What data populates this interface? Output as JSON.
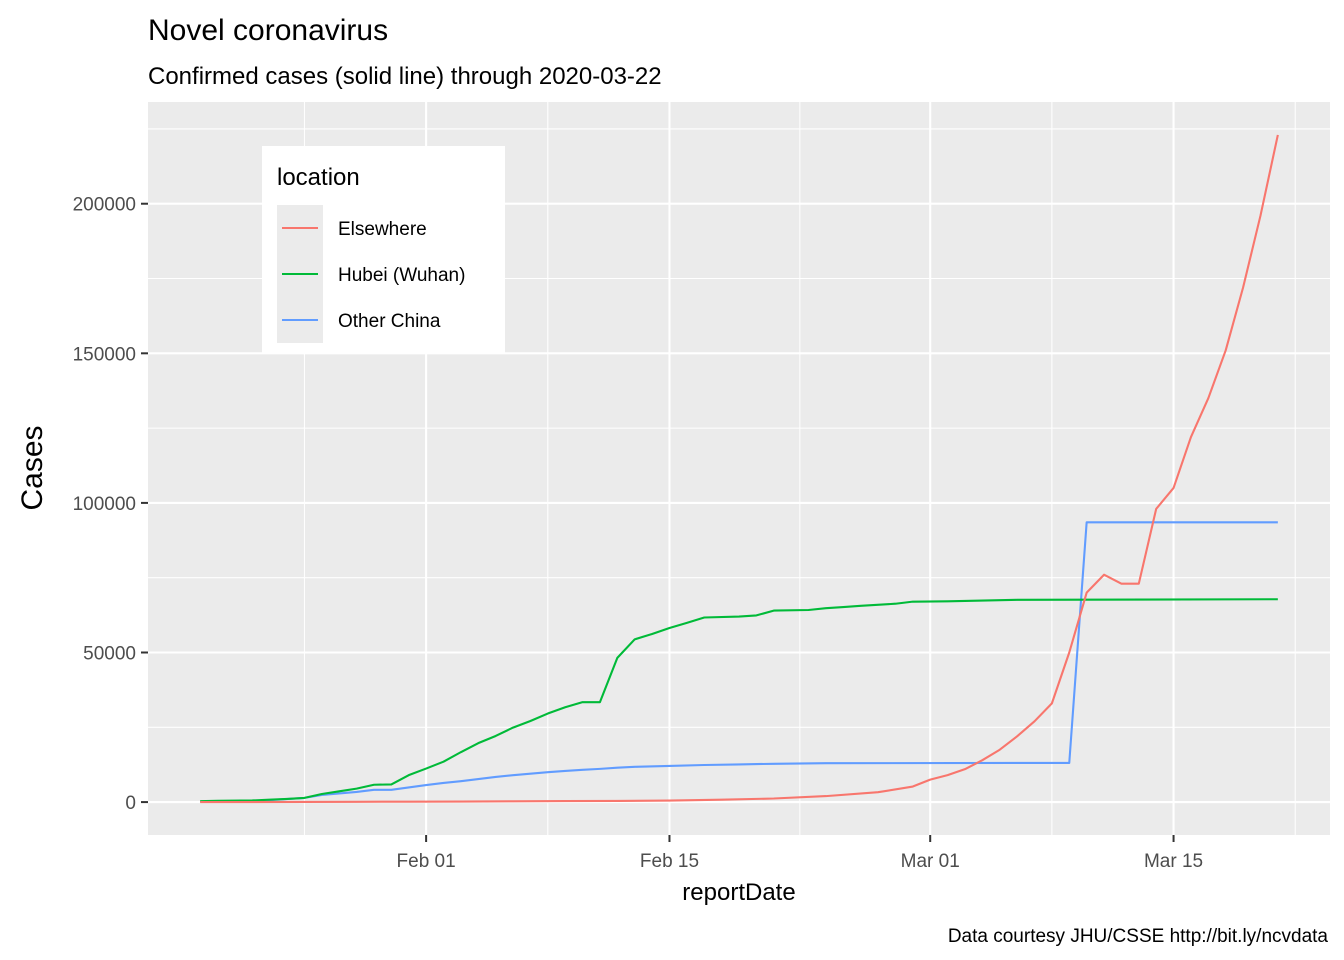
{
  "chart_data": {
    "type": "line",
    "title": "Novel coronavirus",
    "subtitle": "Confirmed cases (solid line)  through 2020-03-22",
    "xlabel": "reportDate",
    "ylabel": "Cases",
    "caption": "Data courtesy JHU/CSSE http://bit.ly/ncvdata",
    "xlim": [
      "2020-01-16",
      "2020-03-24"
    ],
    "ylim": [
      -11000,
      234000
    ],
    "x_ticks": [
      {
        "value": "2020-02-01",
        "label": "Feb 01"
      },
      {
        "value": "2020-02-15",
        "label": "Feb 15"
      },
      {
        "value": "2020-03-01",
        "label": "Mar 01"
      },
      {
        "value": "2020-03-15",
        "label": "Mar 15"
      }
    ],
    "y_ticks": [
      {
        "value": 0,
        "label": "0"
      },
      {
        "value": 50000,
        "label": "50000"
      },
      {
        "value": 100000,
        "label": "100000"
      },
      {
        "value": 150000,
        "label": "150000"
      },
      {
        "value": 200000,
        "label": "200000"
      }
    ],
    "grid": true,
    "legend": {
      "title": "location",
      "position": "top-left"
    },
    "series": [
      {
        "name": "Elsewhere",
        "color": "#F8766D",
        "points": [
          [
            "2020-01-19",
            0
          ],
          [
            "2020-01-22",
            10
          ],
          [
            "2020-01-25",
            40
          ],
          [
            "2020-01-28",
            100
          ],
          [
            "2020-01-31",
            150
          ],
          [
            "2020-02-03",
            180
          ],
          [
            "2020-02-06",
            250
          ],
          [
            "2020-02-09",
            330
          ],
          [
            "2020-02-12",
            400
          ],
          [
            "2020-02-15",
            500
          ],
          [
            "2020-02-18",
            800
          ],
          [
            "2020-02-21",
            1200
          ],
          [
            "2020-02-24",
            2000
          ],
          [
            "2020-02-27",
            3300
          ],
          [
            "2020-02-29",
            5200
          ],
          [
            "2020-03-01",
            7500
          ],
          [
            "2020-03-02",
            9000
          ],
          [
            "2020-03-03",
            11000
          ],
          [
            "2020-03-04",
            14000
          ],
          [
            "2020-03-05",
            17500
          ],
          [
            "2020-03-06",
            22000
          ],
          [
            "2020-03-07",
            27000
          ],
          [
            "2020-03-08",
            33000
          ],
          [
            "2020-03-09",
            50000
          ],
          [
            "2020-03-10",
            70000
          ],
          [
            "2020-03-11",
            76000
          ],
          [
            "2020-03-12",
            73000
          ],
          [
            "2020-03-13",
            73000
          ],
          [
            "2020-03-14",
            98000
          ],
          [
            "2020-03-15",
            105000
          ],
          [
            "2020-03-16",
            122000
          ],
          [
            "2020-03-17",
            135000
          ],
          [
            "2020-03-18",
            151000
          ],
          [
            "2020-03-19",
            172000
          ],
          [
            "2020-03-20",
            196000
          ],
          [
            "2020-03-21",
            223000
          ]
        ]
      },
      {
        "name": "Hubei (Wuhan)",
        "color": "#00BA38",
        "points": [
          [
            "2020-01-19",
            300
          ],
          [
            "2020-01-20",
            450
          ],
          [
            "2020-01-22",
            550
          ],
          [
            "2020-01-23",
            800
          ],
          [
            "2020-01-24",
            1050
          ],
          [
            "2020-01-25",
            1400
          ],
          [
            "2020-01-26",
            2700
          ],
          [
            "2020-01-27",
            3600
          ],
          [
            "2020-01-28",
            4500
          ],
          [
            "2020-01-29",
            5800
          ],
          [
            "2020-01-30",
            5900
          ],
          [
            "2020-01-31",
            9000
          ],
          [
            "2020-02-01",
            11200
          ],
          [
            "2020-02-02",
            13500
          ],
          [
            "2020-02-03",
            16700
          ],
          [
            "2020-02-04",
            19700
          ],
          [
            "2020-02-05",
            22100
          ],
          [
            "2020-02-06",
            24900
          ],
          [
            "2020-02-07",
            27100
          ],
          [
            "2020-02-08",
            29600
          ],
          [
            "2020-02-09",
            31700
          ],
          [
            "2020-02-10",
            33400
          ],
          [
            "2020-02-11",
            33400
          ],
          [
            "2020-02-12",
            48200
          ],
          [
            "2020-02-13",
            54400
          ],
          [
            "2020-02-14",
            56200
          ],
          [
            "2020-02-15",
            58200
          ],
          [
            "2020-02-16",
            59900
          ],
          [
            "2020-02-17",
            61700
          ],
          [
            "2020-02-19",
            62000
          ],
          [
            "2020-02-20",
            62400
          ],
          [
            "2020-02-21",
            64000
          ],
          [
            "2020-02-23",
            64200
          ],
          [
            "2020-02-24",
            64800
          ],
          [
            "2020-02-25",
            65200
          ],
          [
            "2020-02-26",
            65600
          ],
          [
            "2020-02-28",
            66300
          ],
          [
            "2020-02-29",
            67000
          ],
          [
            "2020-03-02",
            67100
          ],
          [
            "2020-03-06",
            67600
          ],
          [
            "2020-03-21",
            67800
          ]
        ]
      },
      {
        "name": "Other China",
        "color": "#619CFF",
        "points": [
          [
            "2020-01-19",
            200
          ],
          [
            "2020-01-22",
            300
          ],
          [
            "2020-01-25",
            1400
          ],
          [
            "2020-01-26",
            2400
          ],
          [
            "2020-01-28",
            3400
          ],
          [
            "2020-01-29",
            4100
          ],
          [
            "2020-01-30",
            4100
          ],
          [
            "2020-01-31",
            4900
          ],
          [
            "2020-02-01",
            5700
          ],
          [
            "2020-02-02",
            6400
          ],
          [
            "2020-02-03",
            7000
          ],
          [
            "2020-02-04",
            7700
          ],
          [
            "2020-02-05",
            8400
          ],
          [
            "2020-02-06",
            9000
          ],
          [
            "2020-02-07",
            9500
          ],
          [
            "2020-02-08",
            10000
          ],
          [
            "2020-02-09",
            10400
          ],
          [
            "2020-02-10",
            10800
          ],
          [
            "2020-02-11",
            11100
          ],
          [
            "2020-02-12",
            11500
          ],
          [
            "2020-02-13",
            11800
          ],
          [
            "2020-02-15",
            12100
          ],
          [
            "2020-02-17",
            12400
          ],
          [
            "2020-02-19",
            12600
          ],
          [
            "2020-02-21",
            12800
          ],
          [
            "2020-02-24",
            13000
          ],
          [
            "2020-03-09",
            13100
          ],
          [
            "2020-03-10",
            93500
          ],
          [
            "2020-03-21",
            93500
          ]
        ]
      }
    ]
  }
}
